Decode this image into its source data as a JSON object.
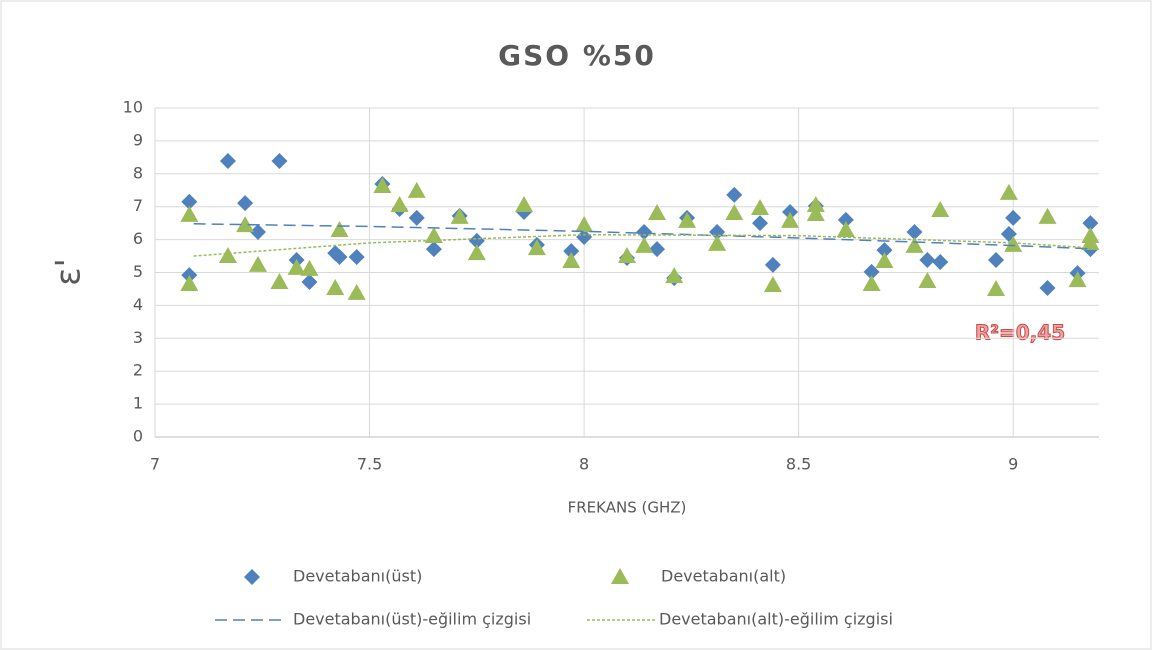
{
  "chart_data": {
    "type": "scatter",
    "title": "GSO %50",
    "xlabel": "FREKANS (GHZ)",
    "ylabel": "ε'",
    "annotation": "R²=0,45",
    "xlim": [
      7,
      9.2
    ],
    "xticks": [
      7,
      7.5,
      8,
      8.5,
      9
    ],
    "ylim": [
      0,
      10
    ],
    "yticks": [
      0,
      1,
      2,
      3,
      4,
      5,
      6,
      7,
      8,
      9,
      10
    ],
    "grid": true,
    "legend": "bottom",
    "series": [
      {
        "name": "Devetabanı(üst)",
        "color": "#4f81bd",
        "marker": "diamond",
        "x": [
          7.08,
          7.08,
          7.17,
          7.21,
          7.24,
          7.29,
          7.33,
          7.36,
          7.42,
          7.43,
          7.47,
          7.53,
          7.57,
          7.61,
          7.65,
          7.71,
          7.75,
          7.86,
          7.89,
          7.97,
          8.0,
          8.1,
          8.14,
          8.17,
          8.21,
          8.24,
          8.31,
          8.35,
          8.41,
          8.44,
          8.48,
          8.54,
          8.61,
          8.67,
          8.7,
          8.77,
          8.8,
          8.83,
          8.96,
          8.99,
          9.0,
          9.08,
          9.15,
          9.18,
          9.18
        ],
        "values": [
          7.15,
          4.92,
          8.39,
          7.11,
          6.23,
          8.39,
          5.38,
          4.71,
          5.59,
          5.47,
          5.47,
          7.69,
          6.93,
          6.66,
          5.71,
          6.72,
          5.96,
          6.84,
          5.84,
          5.65,
          6.08,
          5.44,
          6.23,
          5.71,
          4.83,
          6.66,
          6.23,
          7.36,
          6.5,
          5.23,
          6.84,
          7.02,
          6.6,
          5.02,
          5.68,
          6.23,
          5.38,
          5.32,
          5.38,
          6.17,
          6.66,
          4.53,
          4.98,
          6.5,
          5.71
        ]
      },
      {
        "name": "Devetabanı(alt)",
        "color": "#9bbb59",
        "marker": "triangle",
        "x": [
          7.08,
          7.08,
          7.17,
          7.21,
          7.24,
          7.29,
          7.33,
          7.36,
          7.43,
          7.42,
          7.47,
          7.53,
          7.57,
          7.61,
          7.65,
          7.71,
          7.75,
          7.86,
          7.89,
          7.97,
          8.0,
          8.1,
          8.14,
          8.17,
          8.21,
          8.24,
          8.31,
          8.35,
          8.41,
          8.44,
          8.48,
          8.54,
          8.54,
          8.61,
          8.67,
          8.7,
          8.77,
          8.8,
          8.83,
          8.96,
          8.99,
          9.0,
          9.08,
          9.15,
          9.18,
          9.18
        ],
        "values": [
          6.75,
          4.65,
          5.5,
          6.44,
          5.23,
          4.71,
          5.14,
          5.11,
          6.29,
          4.53,
          4.38,
          7.63,
          7.05,
          7.48,
          6.11,
          6.69,
          5.59,
          7.05,
          5.74,
          5.35,
          6.44,
          5.5,
          5.81,
          6.81,
          4.89,
          6.57,
          5.87,
          6.81,
          6.96,
          4.62,
          6.57,
          7.05,
          6.78,
          6.29,
          4.65,
          5.35,
          5.81,
          4.74,
          6.9,
          4.5,
          7.42,
          5.84,
          6.69,
          4.77,
          6.11,
          5.9
        ]
      },
      {
        "name": "Devetabanı(üst)-eğilim çizgisi",
        "color": "#4f81bd",
        "line_style": "dashed",
        "x": [
          7.09,
          7.5,
          8,
          8.5,
          9,
          9.18
        ],
        "values": [
          6.48,
          6.4,
          6.25,
          6.05,
          5.82,
          5.72
        ]
      },
      {
        "name": "Devetabanı(alt)-eğilim çizgisi",
        "color": "#9bbb59",
        "line_style": "dotted",
        "x": [
          7.09,
          7.5,
          8,
          8.5,
          9,
          9.18
        ],
        "values": [
          5.5,
          5.9,
          6.15,
          6.12,
          5.9,
          5.75
        ]
      }
    ]
  }
}
